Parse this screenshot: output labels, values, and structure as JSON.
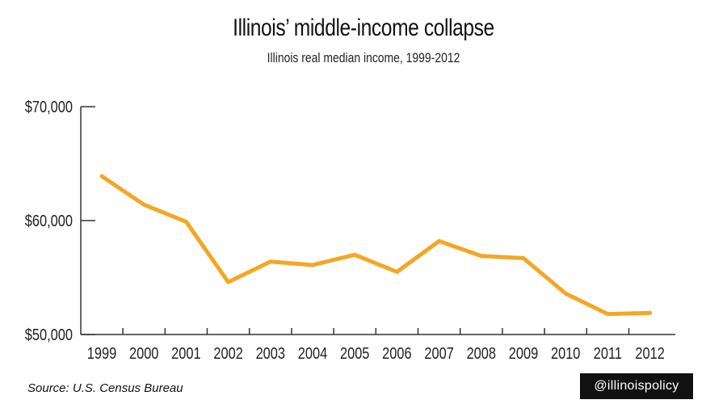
{
  "title": "Illinois’ middle-income collapse",
  "subtitle": "Illinois real median income, 1999-2012",
  "source": "Source: U.S. Census Bureau",
  "handle": "@illinoispolicy",
  "colors": {
    "line": "#F5A623",
    "axis": "#333333",
    "handle_bg": "#111111",
    "handle_text": "#ffffff"
  },
  "chart_data": {
    "type": "line",
    "title": "Illinois’ middle-income collapse",
    "subtitle": "Illinois real median income, 1999-2012",
    "xlabel": "",
    "ylabel": "",
    "x": [
      "1999",
      "2000",
      "2001",
      "2002",
      "2003",
      "2004",
      "2005",
      "2006",
      "2007",
      "2008",
      "2009",
      "2010",
      "2011",
      "2012"
    ],
    "series": [
      {
        "values": [
          63900,
          61400,
          59900,
          54600,
          56400,
          56100,
          57000,
          55500,
          58200,
          56900,
          56700,
          53600,
          51800,
          51900
        ]
      }
    ],
    "ylim": [
      50000,
      70000
    ],
    "yticks": [
      50000,
      60000,
      70000
    ],
    "ytick_labels": [
      "$50,000",
      "$60,000",
      "$70,000"
    ],
    "grid": false,
    "legend": "none"
  }
}
